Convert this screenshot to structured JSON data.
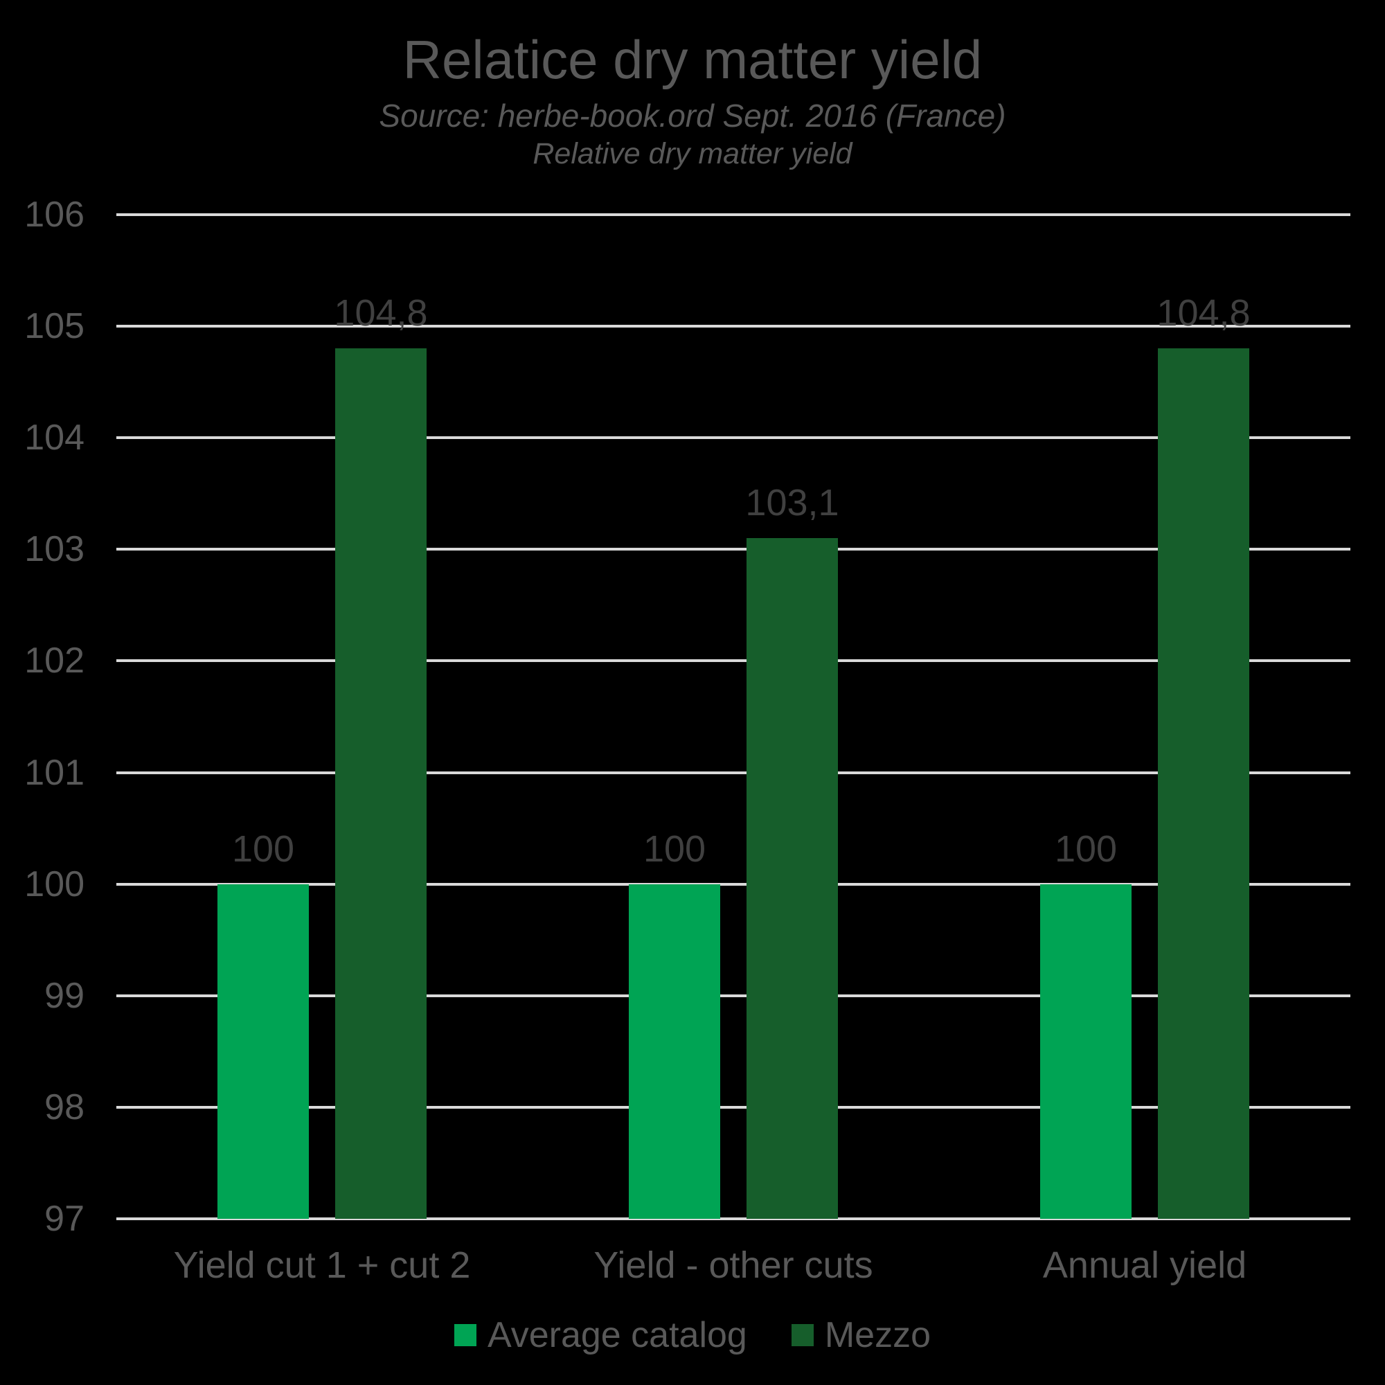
{
  "colors": {
    "background": "#000000",
    "gridline": "#D9D9D9",
    "axis_text": "#595959",
    "data_label_text": "#404040",
    "average_catalog_green": "#00A454",
    "mezzo_green": "#165E2B"
  },
  "chart_data": {
    "type": "bar",
    "title": "Relatice dry matter yield",
    "subtitle_source": "Source: herbe-book.ord Sept. 2016 (France)",
    "subtitle": "Relative dry matter yield",
    "xlabel": "",
    "ylabel": "",
    "categories": [
      "Yield cut 1 + cut 2",
      "Yield - other cuts",
      "Annual yield"
    ],
    "series": [
      {
        "name": "Average catalog",
        "color": "#00A454",
        "values": [
          100,
          100,
          100
        ],
        "value_labels": [
          "100",
          "100",
          "100"
        ]
      },
      {
        "name": "Mezzo",
        "color": "#165E2B",
        "values": [
          104.8,
          103.1,
          104.8
        ],
        "value_labels": [
          "104,8",
          "103,1",
          "104,8"
        ]
      }
    ],
    "ylim": [
      97,
      106
    ],
    "ytick_step": 1,
    "grid": true,
    "legend_position": "bottom"
  }
}
